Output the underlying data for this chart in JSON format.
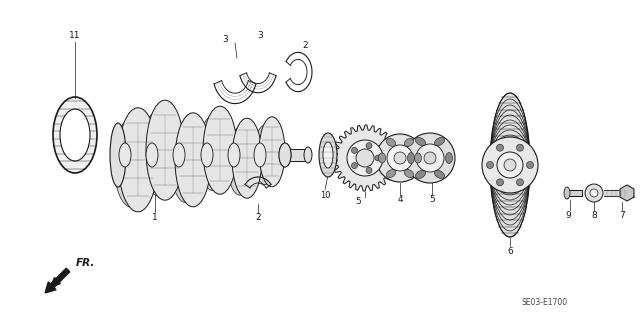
{
  "bg_color": "#ffffff",
  "line_color": "#1a1a1a",
  "fig_width": 6.4,
  "fig_height": 3.19,
  "dpi": 100,
  "watermark": "SE03-E1700",
  "direction_label": "FR."
}
